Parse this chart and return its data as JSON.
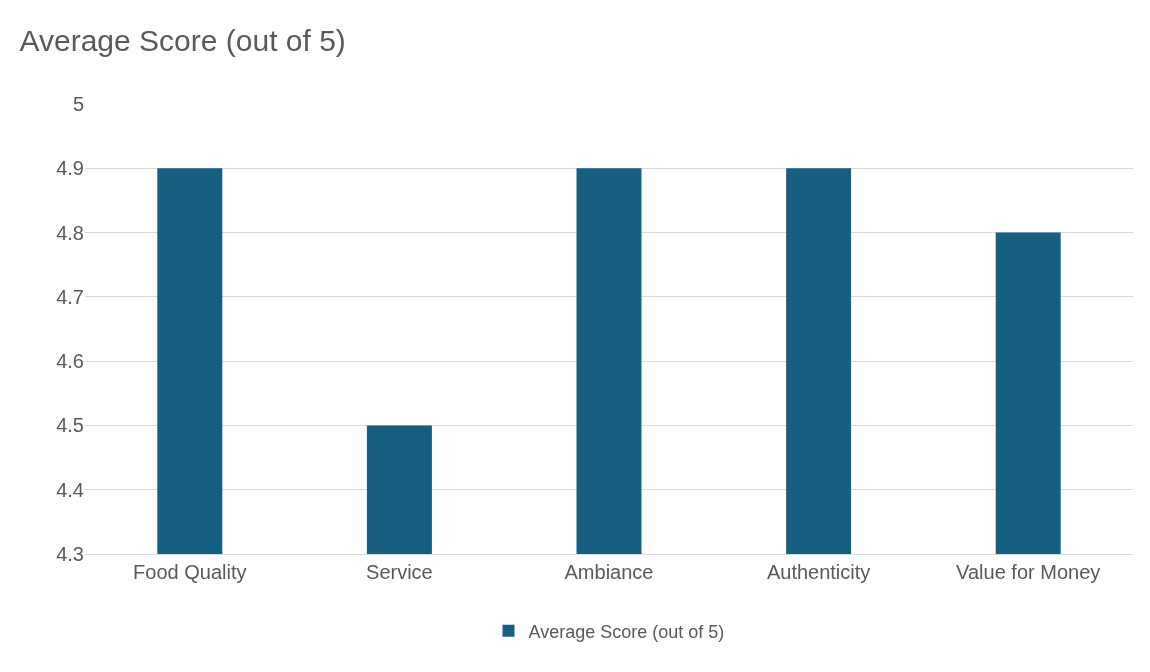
{
  "chart_data": {
    "type": "bar",
    "title": "Average Score (out of 5)",
    "categories": [
      "Food Quality",
      "Service",
      "Ambiance",
      "Authenticity",
      "Value for Money"
    ],
    "series": [
      {
        "name": "Average Score (out of 5)",
        "color": "#175f80",
        "values": [
          4.9,
          4.5,
          4.9,
          4.9,
          4.8
        ]
      }
    ],
    "ylim": [
      4.3,
      5
    ],
    "yticks": [
      4.3,
      4.4,
      4.5,
      4.6,
      4.7,
      4.8,
      4.9,
      5
    ],
    "grid": "y",
    "legend": "bottom"
  }
}
